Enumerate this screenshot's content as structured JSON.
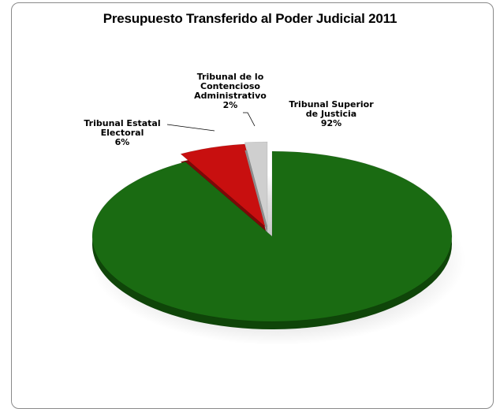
{
  "chart_data": {
    "type": "pie",
    "title": "Presupuesto Transferido al Poder Judicial 2011",
    "slices": [
      {
        "label_lines": [
          "Tribunal Superior",
          "de Justicia",
          "92%"
        ],
        "value": 92,
        "color": "#1a6b12"
      },
      {
        "label_lines": [
          "Tribunal Estatal",
          "Electoral",
          "6%"
        ],
        "value": 6,
        "color": "#c80f0f"
      },
      {
        "label_lines": [
          "Tribunal de lo",
          "Contencioso",
          "Administrativo",
          "2%"
        ],
        "value": 2,
        "color": "#cfcfcf"
      }
    ]
  }
}
